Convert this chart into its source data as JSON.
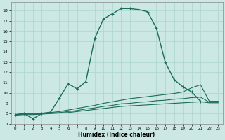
{
  "title": "",
  "xlabel": "Humidex (Indice chaleur)",
  "xlim": [
    -0.5,
    23.5
  ],
  "ylim": [
    7,
    18.8
  ],
  "xticks": [
    0,
    1,
    2,
    3,
    4,
    5,
    6,
    7,
    8,
    9,
    10,
    11,
    12,
    13,
    14,
    15,
    16,
    17,
    18,
    19,
    20,
    21,
    22,
    23
  ],
  "yticks": [
    7,
    8,
    9,
    10,
    11,
    12,
    13,
    14,
    15,
    16,
    17,
    18
  ],
  "bg_color": "#cce8e4",
  "line_color": "#1a6b5a",
  "grid_color": "#aad4cc",
  "main_curve": {
    "x": [
      0,
      1,
      2,
      3,
      4,
      5,
      6,
      7,
      8,
      9,
      10,
      11,
      12,
      13,
      14,
      15,
      16,
      17,
      18,
      19,
      20,
      21
    ],
    "y": [
      7.9,
      8.0,
      7.5,
      8.0,
      8.15,
      9.5,
      10.9,
      10.4,
      11.1,
      15.3,
      17.2,
      17.7,
      18.2,
      18.2,
      18.1,
      17.9,
      16.3,
      13.0,
      11.3,
      10.6,
      10.1,
      9.2
    ]
  },
  "flat_lines": [
    {
      "x": [
        0,
        1,
        2,
        3,
        4,
        5,
        6,
        7,
        8,
        9,
        10,
        11,
        12,
        13,
        14,
        15,
        16,
        17,
        18,
        19,
        20,
        21,
        22,
        23
      ],
      "y": [
        7.9,
        8.0,
        8.0,
        8.05,
        8.1,
        8.2,
        8.35,
        8.5,
        8.65,
        8.8,
        9.0,
        9.15,
        9.3,
        9.45,
        9.55,
        9.65,
        9.75,
        9.85,
        9.95,
        10.1,
        10.5,
        10.8,
        9.2,
        9.2
      ]
    },
    {
      "x": [
        0,
        1,
        2,
        3,
        4,
        5,
        6,
        7,
        8,
        9,
        10,
        11,
        12,
        13,
        14,
        15,
        16,
        17,
        18,
        19,
        20,
        21,
        22,
        23
      ],
      "y": [
        7.9,
        7.95,
        7.95,
        8.0,
        8.05,
        8.1,
        8.2,
        8.3,
        8.45,
        8.55,
        8.7,
        8.8,
        8.95,
        9.0,
        9.1,
        9.15,
        9.25,
        9.3,
        9.4,
        9.45,
        9.55,
        9.6,
        9.1,
        9.1
      ]
    },
    {
      "x": [
        0,
        1,
        2,
        3,
        4,
        5,
        6,
        7,
        8,
        9,
        10,
        11,
        12,
        13,
        14,
        15,
        16,
        17,
        18,
        19,
        20,
        21,
        22,
        23
      ],
      "y": [
        7.85,
        7.9,
        7.9,
        7.95,
        8.0,
        8.05,
        8.1,
        8.2,
        8.3,
        8.4,
        8.5,
        8.6,
        8.7,
        8.75,
        8.8,
        8.85,
        8.9,
        8.95,
        9.0,
        9.05,
        9.1,
        9.15,
        9.05,
        9.05
      ]
    }
  ]
}
